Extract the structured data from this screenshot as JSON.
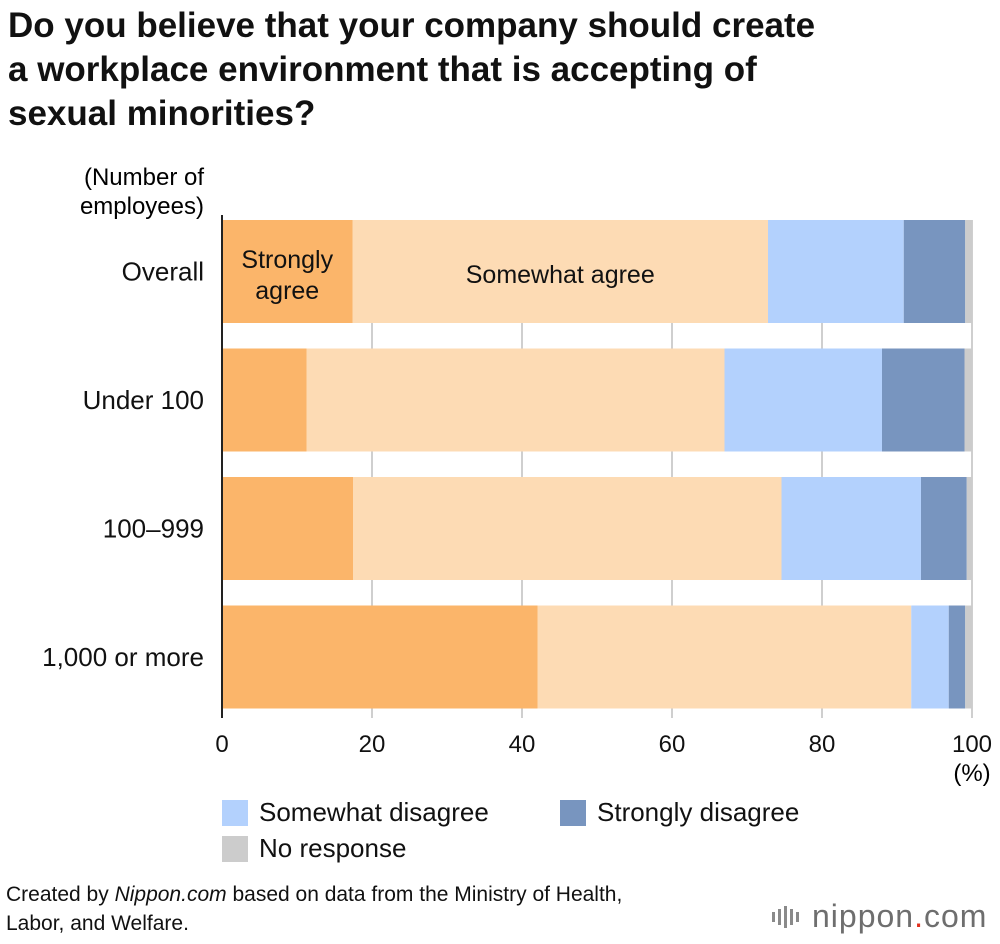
{
  "title_line1": "Do you believe that your company should create",
  "title_line2": "a workplace environment that is accepting of",
  "title_line3": "sexual minorities?",
  "chart_data": {
    "type": "bar",
    "orientation": "horizontal",
    "stacked": true,
    "axis_caption_line1": "(Number of",
    "axis_caption_line2": "employees)",
    "unit": "(%)",
    "categories": [
      "Overall",
      "Under 100",
      "100–999",
      "1,000 or more"
    ],
    "xlim": [
      0,
      100
    ],
    "x_ticks": [
      0,
      20,
      40,
      60,
      80,
      100
    ],
    "grid": true,
    "series": [
      {
        "name": "Strongly agree",
        "color": "#fbb56a",
        "values": [
          17.4,
          11.3,
          17.5,
          42.1
        ]
      },
      {
        "name": "Somewhat agree",
        "color": "#fddbb4",
        "values": [
          55.4,
          55.7,
          57.1,
          49.8
        ]
      },
      {
        "name": "Somewhat disagree",
        "color": "#b3d1fd",
        "values": [
          18.1,
          21.0,
          18.6,
          5.0
        ]
      },
      {
        "name": "Strongly disagree",
        "color": "#7895bf",
        "values": [
          8.2,
          11.0,
          6.1,
          2.2
        ]
      },
      {
        "name": "No response",
        "color": "#cccccc",
        "values": [
          0.9,
          1.0,
          0.7,
          0.9
        ]
      }
    ],
    "inline_labels": {
      "strongly_agree_line1": "Strongly",
      "strongly_agree_line2": "agree",
      "somewhat_agree": "Somewhat agree"
    },
    "legend": {
      "placement": "bottom",
      "items": [
        {
          "label": "Somewhat disagree",
          "color": "#b3d1fd"
        },
        {
          "label": "Strongly disagree",
          "color": "#7895bf"
        },
        {
          "label": "No response",
          "color": "#cccccc"
        }
      ]
    }
  },
  "source": {
    "prefix": "Created by ",
    "site": "Nippon.com",
    "suffix": " based on data from the Ministry of Health,",
    "line2": "Labor, and Welfare."
  },
  "brand": {
    "name": "nippon",
    "dot": ".",
    "tld": "com"
  }
}
